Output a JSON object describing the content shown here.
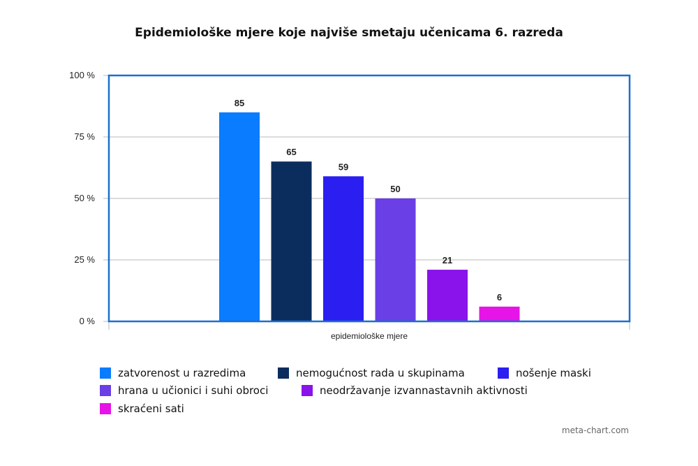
{
  "chart_data": {
    "type": "bar",
    "title": "Epidemiološke mjere koje najviše smetaju učenicama 6. razreda",
    "xlabel": "epidemiološke mjere",
    "ylabel": "",
    "ylim": [
      0,
      100
    ],
    "yticks": [
      "0 %",
      "25 %",
      "50 %",
      "75 %",
      "100 %"
    ],
    "ytick_values": [
      0,
      25,
      50,
      75,
      100
    ],
    "grid": true,
    "legend_position": "bottom",
    "series": [
      {
        "name": "zatvorenost u razredima",
        "value": 85,
        "label": "85",
        "color": "#0a7cff"
      },
      {
        "name": "nemogućnost rada u skupinama",
        "value": 65,
        "label": "65",
        "color": "#0b2d5e"
      },
      {
        "name": "nošenje maski",
        "value": 59,
        "label": "59",
        "color": "#2b1ef0"
      },
      {
        "name": "hrana u učionici i suhi obroci",
        "value": 50,
        "label": "50",
        "color": "#6a3fe6"
      },
      {
        "name": "neodržavanje izvannastavnih aktivnosti",
        "value": 21,
        "label": "21",
        "color": "#8a12ea"
      },
      {
        "name": "skraćeni sati",
        "value": 6,
        "label": "6",
        "color": "#e614e6"
      }
    ]
  },
  "credit": "meta-chart.com",
  "colors": {
    "frame": "#1b6fd0",
    "grid": "#b8b8b8"
  }
}
